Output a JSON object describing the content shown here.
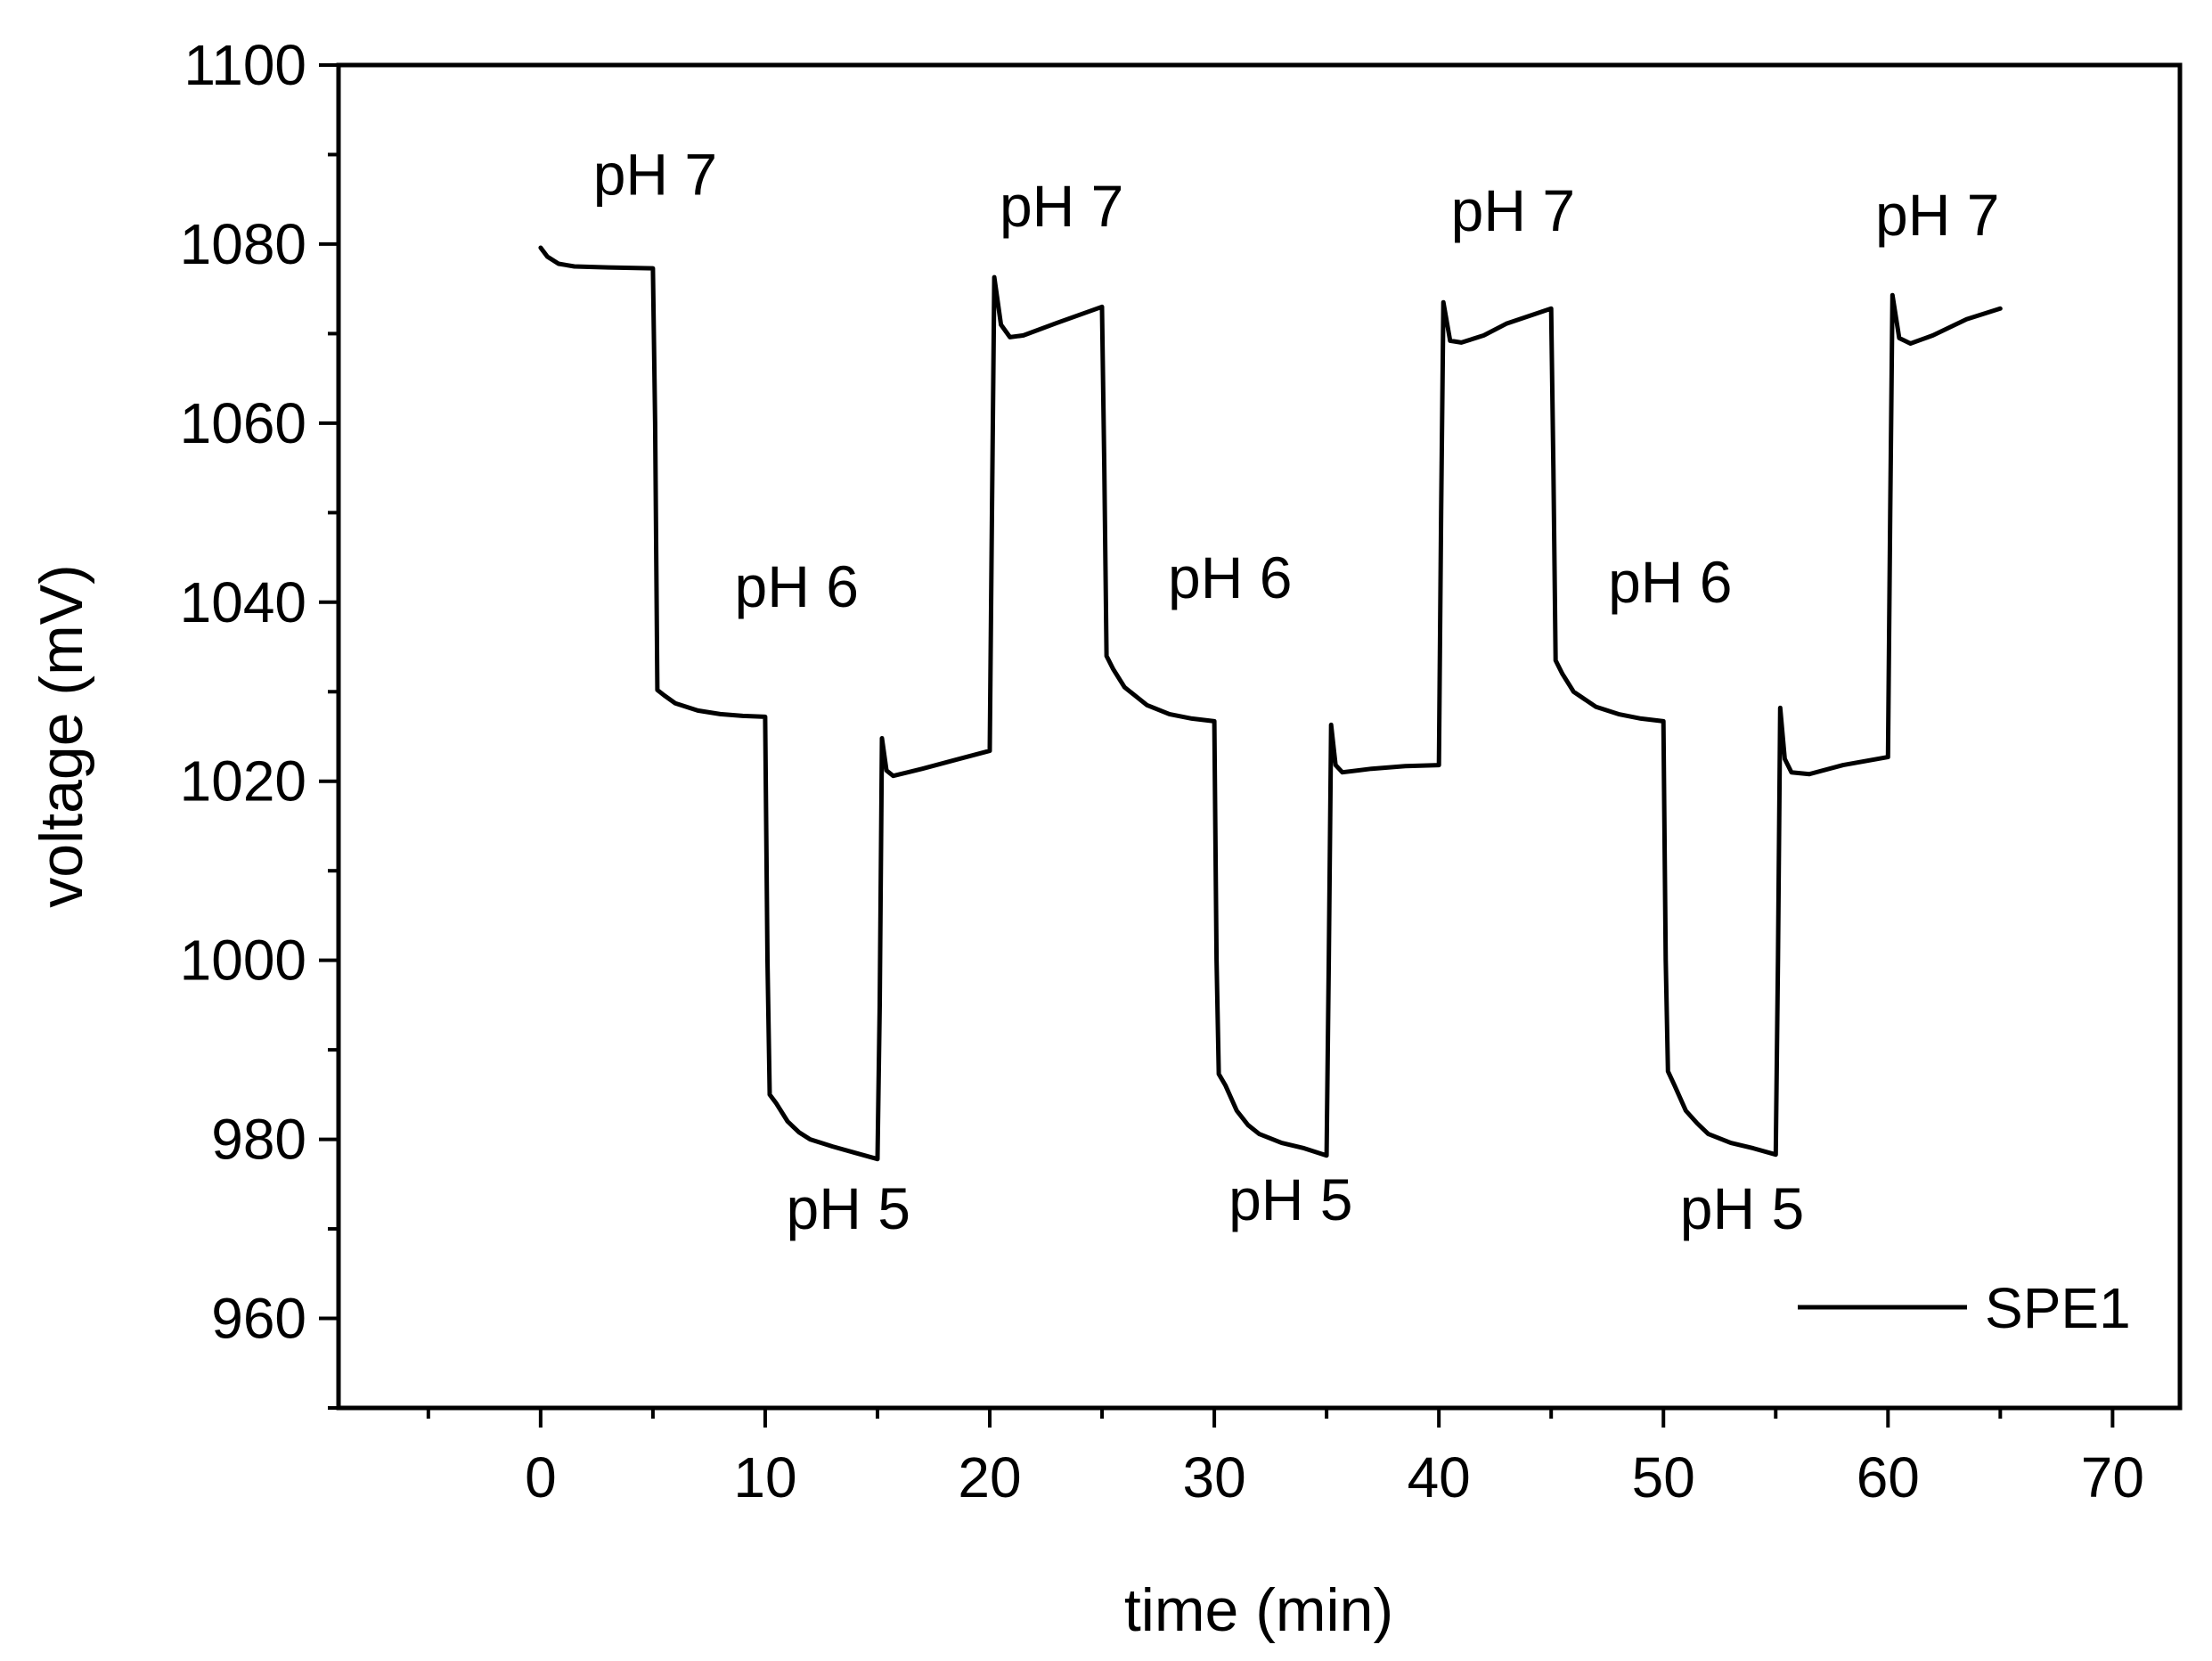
{
  "chart_data": {
    "type": "line",
    "title": "",
    "xlabel": "time (min)",
    "ylabel": "voltage (mV)",
    "xlim": [
      -9,
      73
    ],
    "ylim": [
      950,
      1100
    ],
    "xticks": [
      0,
      10,
      20,
      30,
      40,
      50,
      60,
      70
    ],
    "xtick_labels": [
      "0",
      "10",
      "20",
      "30",
      "40",
      "50",
      "60",
      "70"
    ],
    "yticks": [
      960,
      980,
      1000,
      1020,
      1040,
      1060,
      1080,
      1100
    ],
    "ytick_labels": [
      "960",
      "980",
      "1000",
      "1020",
      "1040",
      "1060",
      "1080",
      "1100"
    ],
    "grid": false,
    "legend": {
      "position": "bottom-right",
      "entries": [
        "SPE1"
      ]
    },
    "series": [
      {
        "name": "SPE1",
        "color": "#000000",
        "points": [
          [
            0,
            1079.6
          ],
          [
            0.3,
            1078.6
          ],
          [
            0.8,
            1077.8
          ],
          [
            1.5,
            1077.5
          ],
          [
            3,
            1077.4
          ],
          [
            5,
            1077.3
          ],
          [
            5.1,
            1060
          ],
          [
            5.2,
            1030.2
          ],
          [
            5.5,
            1029.6
          ],
          [
            6,
            1028.7
          ],
          [
            7,
            1027.9
          ],
          [
            8,
            1027.5
          ],
          [
            9,
            1027.3
          ],
          [
            10,
            1027.2
          ],
          [
            10.1,
            1000
          ],
          [
            10.2,
            985
          ],
          [
            10.5,
            984
          ],
          [
            11,
            982
          ],
          [
            11.5,
            980.8
          ],
          [
            12,
            980
          ],
          [
            13,
            979.2
          ],
          [
            14,
            978.5
          ],
          [
            15,
            977.8
          ],
          [
            15.1,
            995
          ],
          [
            15.2,
            1024.8
          ],
          [
            15.4,
            1021.2
          ],
          [
            15.7,
            1020.6
          ],
          [
            17,
            1021.4
          ],
          [
            18.5,
            1022.4
          ],
          [
            20,
            1023.4
          ],
          [
            20.1,
            1050
          ],
          [
            20.2,
            1076.3
          ],
          [
            20.5,
            1071
          ],
          [
            20.9,
            1069.6
          ],
          [
            21.5,
            1069.8
          ],
          [
            23,
            1071.2
          ],
          [
            25,
            1073
          ],
          [
            25.1,
            1055
          ],
          [
            25.2,
            1034
          ],
          [
            25.5,
            1032.5
          ],
          [
            26,
            1030.5
          ],
          [
            27,
            1028.5
          ],
          [
            28,
            1027.5
          ],
          [
            29,
            1027
          ],
          [
            30,
            1026.7
          ],
          [
            30.1,
            1000
          ],
          [
            30.2,
            987.3
          ],
          [
            30.5,
            986
          ],
          [
            31,
            983.2
          ],
          [
            31.5,
            981.6
          ],
          [
            32,
            980.6
          ],
          [
            33,
            979.6
          ],
          [
            34,
            979
          ],
          [
            35,
            978.2
          ],
          [
            35.1,
            1000
          ],
          [
            35.2,
            1026.3
          ],
          [
            35.4,
            1021.8
          ],
          [
            35.7,
            1021
          ],
          [
            37,
            1021.4
          ],
          [
            38.5,
            1021.7
          ],
          [
            40,
            1021.8
          ],
          [
            40.1,
            1050
          ],
          [
            40.2,
            1073.5
          ],
          [
            40.5,
            1069.2
          ],
          [
            41,
            1069
          ],
          [
            42,
            1069.8
          ],
          [
            43,
            1071.1
          ],
          [
            45,
            1072.8
          ],
          [
            45.1,
            1055
          ],
          [
            45.2,
            1033.5
          ],
          [
            45.5,
            1032
          ],
          [
            46,
            1030
          ],
          [
            47,
            1028.3
          ],
          [
            48,
            1027.5
          ],
          [
            49,
            1027
          ],
          [
            50,
            1026.7
          ],
          [
            50.1,
            1000
          ],
          [
            50.2,
            987.6
          ],
          [
            50.5,
            986
          ],
          [
            51,
            983.2
          ],
          [
            51.5,
            981.8
          ],
          [
            52,
            980.6
          ],
          [
            53,
            979.6
          ],
          [
            54,
            979
          ],
          [
            55,
            978.3
          ],
          [
            55.1,
            1000
          ],
          [
            55.2,
            1028.2
          ],
          [
            55.4,
            1022.5
          ],
          [
            55.7,
            1021
          ],
          [
            56.5,
            1020.8
          ],
          [
            58,
            1021.8
          ],
          [
            60,
            1022.7
          ],
          [
            60.1,
            1050
          ],
          [
            60.2,
            1074.3
          ],
          [
            60.5,
            1069.5
          ],
          [
            61,
            1068.9
          ],
          [
            62,
            1069.8
          ],
          [
            63.5,
            1071.6
          ],
          [
            65,
            1072.8
          ]
        ]
      }
    ],
    "annotations": [
      {
        "text": "pH 7",
        "x": 5.1,
        "y": 1085.5
      },
      {
        "text": "pH 6",
        "x": 11.4,
        "y": 1039.5
      },
      {
        "text": "pH 5",
        "x": 13.7,
        "y": 970
      },
      {
        "text": "pH 7",
        "x": 23.2,
        "y": 1082
      },
      {
        "text": "pH 6",
        "x": 30.7,
        "y": 1040.5
      },
      {
        "text": "pH 5",
        "x": 33.4,
        "y": 971
      },
      {
        "text": "pH 7",
        "x": 43.3,
        "y": 1081.5
      },
      {
        "text": "pH 6",
        "x": 50.3,
        "y": 1040
      },
      {
        "text": "pH 5",
        "x": 53.5,
        "y": 970
      },
      {
        "text": "pH 7",
        "x": 62.2,
        "y": 1081
      }
    ]
  }
}
